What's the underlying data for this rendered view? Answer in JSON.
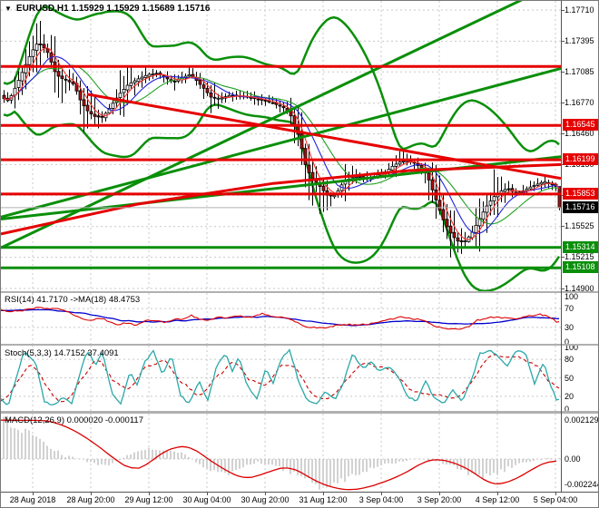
{
  "ui": {
    "title": "EURUSD,H1 1.15929 1.15929 1.15689 1.15716",
    "dropdown_icon": "▼"
  },
  "colors": {
    "resistance": "#e60000",
    "support": "#0a8f0a",
    "current_badge": "#000000",
    "current_line": "#b0b0b0",
    "grid": "#c8c8c8",
    "bull": "#ffffff",
    "bear": "#b01010",
    "candle_border": "#000000",
    "ma_fast": "#ff3030",
    "ma_mid": "#2020dd",
    "ma_slow": "#20a020",
    "bb": "#0a8f0a",
    "rsi": "#dd0000",
    "rsi_ma": "#0000cc",
    "stoch_k": "#2aa8a8",
    "stoch_d": "#cc0000",
    "macd_hist": "#b4b4b4",
    "macd_signal": "#dd0000"
  },
  "chart_data": {
    "type": "candlestick",
    "symbol": "EURUSD",
    "timeframe": "H1",
    "current_ohlc": {
      "open": "1.15929",
      "high": "1.15929",
      "low": "1.15689",
      "close": "1.15716"
    },
    "x_axis": {
      "labels": [
        "28 Aug 2018",
        "28 Aug 20:00",
        "29 Aug 12:00",
        "30 Aug 04:00",
        "30 Aug 20:00",
        "31 Aug 12:00",
        "3 Sep 04:00",
        "3 Sep 20:00",
        "4 Sep 12:00",
        "5 Sep 04:00"
      ],
      "tick_x": [
        35,
        99,
        163,
        227,
        291,
        355,
        419,
        483,
        547,
        611
      ]
    },
    "y_axis": {
      "grid_labels": [
        "1.17710",
        "1.17395",
        "1.17085",
        "1.16770",
        "1.16460",
        "1.16150",
        "1.15840",
        "1.15525",
        "1.15215",
        "1.14900"
      ]
    },
    "levels": [
      {
        "price": 1.1714,
        "label": "",
        "kind": "resistance",
        "badge": false
      },
      {
        "price": 1.16545,
        "label": "1.16545",
        "kind": "resistance",
        "badge": true
      },
      {
        "price": 1.16199,
        "label": "1.16199",
        "kind": "resistance",
        "badge": true
      },
      {
        "price": 1.15853,
        "label": "1.15853",
        "kind": "resistance",
        "badge": true
      },
      {
        "price": 1.15314,
        "label": "1.15314",
        "kind": "support",
        "badge": true
      },
      {
        "price": 1.15108,
        "label": "1.15108",
        "kind": "support",
        "badge": true
      }
    ],
    "current_price": {
      "price": 1.15716,
      "label": "1.15716"
    },
    "trendlines": [
      {
        "color": "#0a8f0a",
        "w": 3,
        "points": [
          [
            0,
            1.1531
          ],
          [
            617,
            1.18
          ]
        ]
      },
      {
        "color": "#0a8f0a",
        "w": 3,
        "points": [
          [
            0,
            1.1562
          ],
          [
            617,
            1.1712
          ]
        ]
      },
      {
        "color": "#0a8f0a",
        "w": 3,
        "points": [
          [
            0,
            1.156
          ],
          [
            617,
            1.1623
          ]
        ]
      },
      {
        "color": "#e60000",
        "w": 3,
        "points": [
          [
            95,
            1.1686
          ],
          [
            617,
            1.1601
          ]
        ]
      },
      {
        "color": "#e60000",
        "w": 3,
        "points": [
          [
            0,
            1.1545
          ],
          [
            150,
            1.1575
          ],
          [
            300,
            1.1596
          ],
          [
            450,
            1.1609
          ],
          [
            617,
            1.1615
          ]
        ]
      }
    ],
    "price_path_anchors": [
      [
        0,
        1.1683
      ],
      [
        8,
        1.1679
      ],
      [
        15,
        1.1692
      ],
      [
        25,
        1.1712
      ],
      [
        33,
        1.1728
      ],
      [
        40,
        1.1738
      ],
      [
        46,
        1.1734
      ],
      [
        52,
        1.1727
      ],
      [
        58,
        1.171
      ],
      [
        64,
        1.1703
      ],
      [
        72,
        1.17
      ],
      [
        80,
        1.1696
      ],
      [
        88,
        1.1678
      ],
      [
        96,
        1.1668
      ],
      [
        104,
        1.1663
      ],
      [
        112,
        1.1663
      ],
      [
        120,
        1.1673
      ],
      [
        130,
        1.1686
      ],
      [
        140,
        1.1696
      ],
      [
        152,
        1.1702
      ],
      [
        162,
        1.1706
      ],
      [
        172,
        1.1707
      ],
      [
        180,
        1.1703
      ],
      [
        190,
        1.1698
      ],
      [
        200,
        1.1703
      ],
      [
        208,
        1.1706
      ],
      [
        216,
        1.1699
      ],
      [
        224,
        1.1691
      ],
      [
        232,
        1.1682
      ],
      [
        242,
        1.1682
      ],
      [
        252,
        1.1685
      ],
      [
        262,
        1.1684
      ],
      [
        272,
        1.1683
      ],
      [
        282,
        1.1681
      ],
      [
        292,
        1.1679
      ],
      [
        302,
        1.1676
      ],
      [
        312,
        1.1672
      ],
      [
        320,
        1.1663
      ],
      [
        328,
        1.1643
      ],
      [
        336,
        1.1611
      ],
      [
        344,
        1.16
      ],
      [
        352,
        1.1592
      ],
      [
        360,
        1.1583
      ],
      [
        368,
        1.1584
      ],
      [
        376,
        1.1596
      ],
      [
        384,
        1.1601
      ],
      [
        392,
        1.1603
      ],
      [
        400,
        1.1601
      ],
      [
        408,
        1.1602
      ],
      [
        416,
        1.1605
      ],
      [
        424,
        1.1608
      ],
      [
        432,
        1.1614
      ],
      [
        440,
        1.1618
      ],
      [
        448,
        1.1619
      ],
      [
        456,
        1.1616
      ],
      [
        464,
        1.1611
      ],
      [
        470,
        1.1602
      ],
      [
        478,
        1.1582
      ],
      [
        486,
        1.1561
      ],
      [
        494,
        1.1547
      ],
      [
        502,
        1.1538
      ],
      [
        510,
        1.1537
      ],
      [
        518,
        1.1545
      ],
      [
        526,
        1.1559
      ],
      [
        534,
        1.1572
      ],
      [
        542,
        1.1582
      ],
      [
        550,
        1.1588
      ],
      [
        558,
        1.1591
      ],
      [
        566,
        1.1586
      ],
      [
        574,
        1.1588
      ],
      [
        582,
        1.1592
      ],
      [
        590,
        1.1595
      ],
      [
        598,
        1.1598
      ],
      [
        606,
        1.1595
      ],
      [
        611,
        1.1593
      ],
      [
        615,
        1.1572
      ]
    ],
    "rsi": {
      "label": "RSI(14) 41.7170 ->MA(18) 48.4753",
      "value": 41.717,
      "ma_value": 48.4753,
      "scale_labels": [
        100,
        70,
        30,
        0
      ],
      "grid": [
        70,
        30
      ],
      "anchors": [
        [
          0,
          66
        ],
        [
          10,
          63
        ],
        [
          20,
          65
        ],
        [
          30,
          68
        ],
        [
          40,
          72
        ],
        [
          50,
          70
        ],
        [
          60,
          69
        ],
        [
          70,
          68
        ],
        [
          80,
          55
        ],
        [
          90,
          48
        ],
        [
          100,
          45
        ],
        [
          110,
          50
        ],
        [
          120,
          42
        ],
        [
          130,
          36
        ],
        [
          140,
          40
        ],
        [
          150,
          34
        ],
        [
          160,
          46
        ],
        [
          170,
          44
        ],
        [
          180,
          40
        ],
        [
          190,
          46
        ],
        [
          200,
          48
        ],
        [
          210,
          55
        ],
        [
          218,
          48
        ],
        [
          228,
          44
        ],
        [
          238,
          52
        ],
        [
          248,
          50
        ],
        [
          258,
          55
        ],
        [
          268,
          52
        ],
        [
          278,
          53
        ],
        [
          288,
          60
        ],
        [
          295,
          55
        ],
        [
          305,
          52
        ],
        [
          315,
          50
        ],
        [
          325,
          42
        ],
        [
          335,
          32
        ],
        [
          345,
          30
        ],
        [
          355,
          28
        ],
        [
          365,
          33
        ],
        [
          375,
          36
        ],
        [
          385,
          36
        ],
        [
          395,
          36
        ],
        [
          405,
          36
        ],
        [
          415,
          42
        ],
        [
          425,
          45
        ],
        [
          435,
          50
        ],
        [
          445,
          52
        ],
        [
          455,
          48
        ],
        [
          465,
          45
        ],
        [
          475,
          35
        ],
        [
          485,
          30
        ],
        [
          495,
          27
        ],
        [
          505,
          25
        ],
        [
          515,
          32
        ],
        [
          525,
          45
        ],
        [
          535,
          50
        ],
        [
          545,
          52
        ],
        [
          555,
          50
        ],
        [
          565,
          48
        ],
        [
          575,
          52
        ],
        [
          585,
          55
        ],
        [
          592,
          58
        ],
        [
          600,
          55
        ],
        [
          606,
          50
        ],
        [
          612,
          42
        ]
      ]
    },
    "stoch": {
      "label": "Stoch(5,3,3) 14.7152 37.4091",
      "value": 14.7152,
      "signal_value": 37.4091,
      "scale_labels": [
        100,
        80,
        50,
        20,
        0
      ],
      "grid": [
        80,
        50,
        20
      ],
      "anchors": [
        [
          0,
          15
        ],
        [
          8,
          5
        ],
        [
          25,
          92
        ],
        [
          38,
          75
        ],
        [
          48,
          12
        ],
        [
          58,
          6
        ],
        [
          68,
          18
        ],
        [
          78,
          10
        ],
        [
          95,
          95
        ],
        [
          105,
          70
        ],
        [
          112,
          93
        ],
        [
          122,
          25
        ],
        [
          132,
          8
        ],
        [
          142,
          60
        ],
        [
          150,
          40
        ],
        [
          158,
          75
        ],
        [
          168,
          95
        ],
        [
          178,
          55
        ],
        [
          188,
          88
        ],
        [
          198,
          20
        ],
        [
          208,
          8
        ],
        [
          218,
          45
        ],
        [
          228,
          12
        ],
        [
          238,
          70
        ],
        [
          248,
          90
        ],
        [
          255,
          60
        ],
        [
          262,
          85
        ],
        [
          272,
          35
        ],
        [
          282,
          15
        ],
        [
          292,
          65
        ],
        [
          300,
          40
        ],
        [
          308,
          80
        ],
        [
          318,
          95
        ],
        [
          328,
          45
        ],
        [
          338,
          12
        ],
        [
          348,
          8
        ],
        [
          358,
          30
        ],
        [
          368,
          12
        ],
        [
          378,
          45
        ],
        [
          388,
          90
        ],
        [
          398,
          65
        ],
        [
          408,
          75
        ],
        [
          418,
          60
        ],
        [
          428,
          70
        ],
        [
          438,
          50
        ],
        [
          448,
          20
        ],
        [
          458,
          12
        ],
        [
          468,
          45
        ],
        [
          478,
          15
        ],
        [
          488,
          8
        ],
        [
          498,
          30
        ],
        [
          508,
          12
        ],
        [
          518,
          45
        ],
        [
          528,
          90
        ],
        [
          538,
          95
        ],
        [
          548,
          85
        ],
        [
          558,
          70
        ],
        [
          568,
          95
        ],
        [
          578,
          90
        ],
        [
          588,
          40
        ],
        [
          598,
          75
        ],
        [
          605,
          40
        ],
        [
          612,
          15
        ]
      ]
    },
    "macd": {
      "label": "MACD(12,26,9) 0.000020 -0.000117",
      "value": 2e-05,
      "signal_value": -0.000117,
      "scale_labels": [
        "0.002129",
        "0.00",
        "-0.002244"
      ],
      "signal_anchors": [
        [
          0,
          0.00212
        ],
        [
          54,
          0.0021
        ],
        [
          80,
          0.0016
        ],
        [
          105,
          0.0008
        ],
        [
          125,
          0.0
        ],
        [
          144,
          -0.0006
        ],
        [
          160,
          -0.0004
        ],
        [
          175,
          0.0003
        ],
        [
          195,
          0.0007
        ],
        [
          208,
          0.0007
        ],
        [
          220,
          0.0003
        ],
        [
          240,
          -0.0004
        ],
        [
          267,
          -0.0011
        ],
        [
          285,
          -0.0009
        ],
        [
          300,
          -0.0006
        ],
        [
          317,
          -0.0004
        ],
        [
          330,
          -0.0007
        ],
        [
          350,
          -0.0013
        ],
        [
          371,
          -0.00163
        ],
        [
          385,
          -0.0017
        ],
        [
          400,
          -0.0016
        ],
        [
          420,
          -0.0013
        ],
        [
          440,
          -0.0009
        ],
        [
          455,
          -0.0005
        ],
        [
          467,
          -0.0001
        ],
        [
          480,
          0.0
        ],
        [
          492,
          -0.0001
        ],
        [
          505,
          -0.0003
        ],
        [
          520,
          -0.0007
        ],
        [
          538,
          -0.00135
        ],
        [
          550,
          -0.0014
        ],
        [
          562,
          -0.0012
        ],
        [
          575,
          -0.0009
        ],
        [
          590,
          -0.0004
        ],
        [
          605,
          -0.0001
        ],
        [
          615,
          -0.000117
        ]
      ],
      "hist_anchors": [
        [
          0,
          0.0021
        ],
        [
          10,
          0.002
        ],
        [
          25,
          0.0016
        ],
        [
          40,
          0.0011
        ],
        [
          55,
          0.0006
        ],
        [
          70,
          0.0002
        ],
        [
          85,
          0.0
        ],
        [
          100,
          -0.0002
        ],
        [
          110,
          -0.0004
        ],
        [
          120,
          -0.0003
        ],
        [
          135,
          0.0001
        ],
        [
          150,
          0.0004
        ],
        [
          165,
          0.0005
        ],
        [
          180,
          0.0005
        ],
        [
          195,
          0.0004
        ],
        [
          205,
          0.0002
        ],
        [
          215,
          -0.0002
        ],
        [
          225,
          -0.0005
        ],
        [
          235,
          -0.0007
        ],
        [
          245,
          -0.0008
        ],
        [
          255,
          -0.0007
        ],
        [
          265,
          -0.0005
        ],
        [
          275,
          -0.0003
        ],
        [
          285,
          -0.0002
        ],
        [
          295,
          -0.0003
        ],
        [
          305,
          -0.0004
        ],
        [
          315,
          -0.0006
        ],
        [
          325,
          -0.0009
        ],
        [
          335,
          -0.0012
        ],
        [
          345,
          -0.0014
        ],
        [
          355,
          -0.0015
        ],
        [
          365,
          -0.0014
        ],
        [
          375,
          -0.0012
        ],
        [
          385,
          -0.001
        ],
        [
          395,
          -0.0008
        ],
        [
          405,
          -0.0006
        ],
        [
          415,
          -0.0004
        ],
        [
          425,
          -0.0003
        ],
        [
          435,
          -0.0002
        ],
        [
          445,
          -0.0001
        ],
        [
          455,
          0.0
        ],
        [
          465,
          0.0
        ],
        [
          475,
          -0.0001
        ],
        [
          485,
          -0.0002
        ],
        [
          495,
          -0.0004
        ],
        [
          505,
          -0.0006
        ],
        [
          515,
          -0.0008
        ],
        [
          525,
          -0.0009
        ],
        [
          535,
          -0.0009
        ],
        [
          545,
          -0.0008
        ],
        [
          555,
          -0.0006
        ],
        [
          565,
          -0.0004
        ],
        [
          575,
          -0.0002
        ],
        [
          585,
          -0.0001
        ],
        [
          595,
          0.0
        ],
        [
          605,
          2e-05
        ],
        [
          615,
          2e-05
        ]
      ]
    }
  }
}
